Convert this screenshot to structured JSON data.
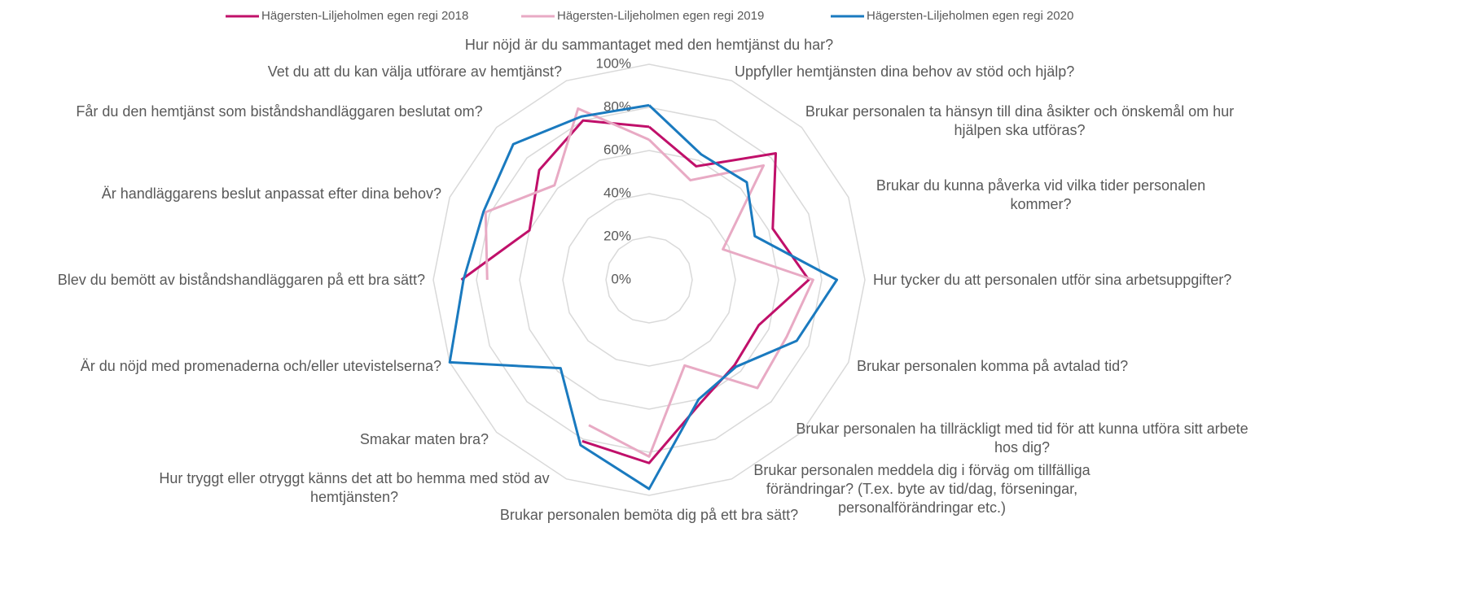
{
  "chart_data": {
    "type": "radar",
    "categories": [
      "Hur nöjd är du sammantaget med den hemtjänst du har?",
      "Uppfyller hemtjänsten dina behov av stöd och hjälp?",
      "Brukar personalen ta hänsyn till dina åsikter och önskemål om hur hjälpen ska utföras?",
      "Brukar du kunna påverka vid vilka tider personalen kommer?",
      "Hur tycker du att personalen utför sina arbetsuppgifter?",
      "Brukar personalen komma på avtalad tid?",
      "Brukar personalen ha tillräckligt med tid för att kunna utföra sitt arbete hos dig?",
      "Brukar personalen meddela dig i förväg om tillfälliga förändringar? (T.ex. byte av tid/dag, förseningar, personalförändringar etc.)",
      "Brukar personalen bemöta dig på ett bra sätt?",
      "Hur tryggt eller otryggt känns det att bo hemma med stöd av hemtjänsten?",
      "Smakar maten bra?",
      "Är du nöjd med promenaderna och/eller utevistelserna?",
      "Blev du bemött av biståndshandläggaren på ett bra sätt?",
      "Är handläggarens beslut anpassat efter dina behov?",
      "Får du den hemtjänst som biståndshandläggaren beslutat om?",
      "Vet du att du kan välja utförare av hemtjänst?"
    ],
    "series": [
      {
        "name": "Hägersten-Liljeholmen egen regi 2018",
        "color": "#c0106a",
        "values": [
          71,
          57,
          83,
          62,
          74,
          55,
          56,
          62,
          85,
          81,
          null,
          null,
          87,
          60,
          72,
          80
        ]
      },
      {
        "name": "Hägersten-Liljeholmen egen regi 2019",
        "color": "#e8aac4",
        "values": [
          65,
          50,
          75,
          37,
          76,
          69,
          71,
          43,
          82,
          73,
          null,
          null,
          75,
          82,
          62,
          86
        ]
      },
      {
        "name": "Hägersten-Liljeholmen egen regi 2020",
        "color": "#1a7abf",
        "values": [
          81,
          63,
          64,
          53,
          87,
          74,
          57,
          60,
          97,
          83,
          58,
          100,
          86,
          83,
          89,
          82
        ]
      }
    ],
    "ylim": [
      0,
      100
    ],
    "yticks": [
      {
        "value": 0,
        "label": "0%"
      },
      {
        "value": 20,
        "label": "20%"
      },
      {
        "value": 40,
        "label": "40%"
      },
      {
        "value": 60,
        "label": "60%"
      },
      {
        "value": 80,
        "label": "80%"
      },
      {
        "value": 100,
        "label": "100%"
      }
    ],
    "grid": true,
    "legend": "top"
  }
}
